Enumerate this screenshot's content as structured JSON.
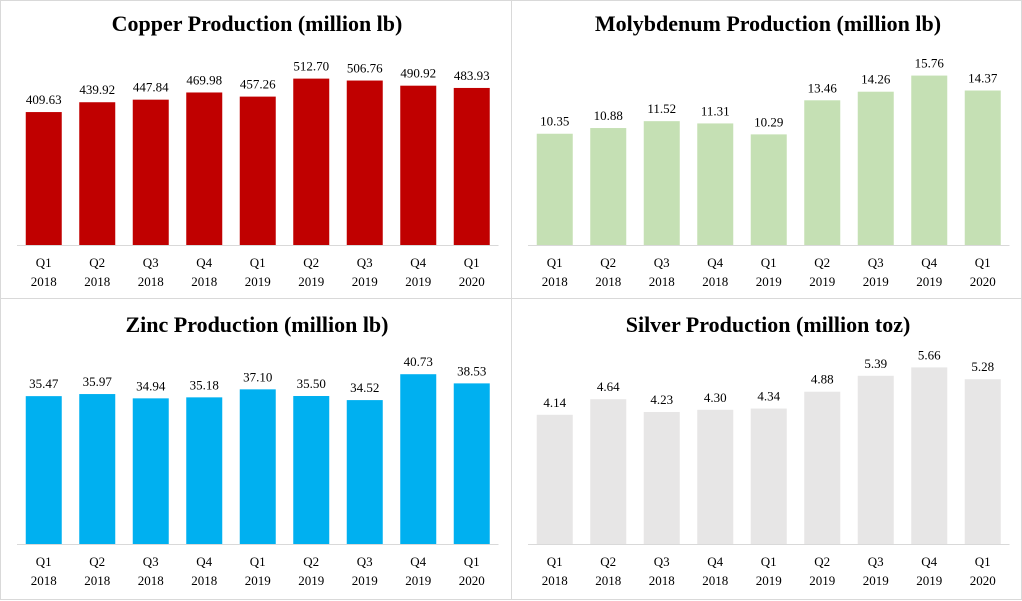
{
  "chart_data": [
    {
      "type": "bar",
      "title": "Copper Production (million lb)",
      "categories": [
        [
          "Q1",
          "2018"
        ],
        [
          "Q2",
          "2018"
        ],
        [
          "Q3",
          "2018"
        ],
        [
          "Q4",
          "2018"
        ],
        [
          "Q1",
          "2019"
        ],
        [
          "Q2",
          "2019"
        ],
        [
          "Q3",
          "2019"
        ],
        [
          "Q4",
          "2019"
        ],
        [
          "Q1",
          "2020"
        ]
      ],
      "values": [
        409.63,
        439.92,
        447.84,
        469.98,
        457.26,
        512.7,
        506.76,
        490.92,
        483.93
      ],
      "labels": [
        "409.63",
        "439.92",
        "447.84",
        "469.98",
        "457.26",
        "512.70",
        "506.76",
        "490.92",
        "483.93"
      ],
      "ylim": [
        0,
        530
      ],
      "color": "#c00000",
      "grid": false
    },
    {
      "type": "bar",
      "title": "Molybdenum Production (million lb)",
      "categories": [
        [
          "Q1",
          "2018"
        ],
        [
          "Q2",
          "2018"
        ],
        [
          "Q3",
          "2018"
        ],
        [
          "Q4",
          "2018"
        ],
        [
          "Q1",
          "2019"
        ],
        [
          "Q2",
          "2019"
        ],
        [
          "Q3",
          "2019"
        ],
        [
          "Q4",
          "2019"
        ],
        [
          "Q1",
          "2020"
        ]
      ],
      "values": [
        10.35,
        10.88,
        11.52,
        11.31,
        10.29,
        13.46,
        14.26,
        15.76,
        14.37
      ],
      "labels": [
        "10.35",
        "10.88",
        "11.52",
        "11.31",
        "10.29",
        "13.46",
        "14.26",
        "15.76",
        "14.37"
      ],
      "ylim": [
        0,
        16
      ],
      "color": "#c5e0b4",
      "grid": false
    },
    {
      "type": "bar",
      "title": "Zinc Production (million lb)",
      "categories": [
        [
          "Q1",
          "2018"
        ],
        [
          "Q2",
          "2018"
        ],
        [
          "Q3",
          "2018"
        ],
        [
          "Q4",
          "2018"
        ],
        [
          "Q1",
          "2019"
        ],
        [
          "Q2",
          "2019"
        ],
        [
          "Q3",
          "2019"
        ],
        [
          "Q4",
          "2019"
        ],
        [
          "Q1",
          "2020"
        ]
      ],
      "values": [
        35.47,
        35.97,
        34.94,
        35.18,
        37.1,
        35.5,
        34.52,
        40.73,
        38.53
      ],
      "labels": [
        "35.47",
        "35.97",
        "34.94",
        "35.18",
        "37.10",
        "35.50",
        "34.52",
        "40.73",
        "38.53"
      ],
      "ylim": [
        0,
        41.5
      ],
      "color": "#00b0f0",
      "grid": false
    },
    {
      "type": "bar",
      "title": "Silver Production (million toz)",
      "categories": [
        [
          "Q1",
          "2018"
        ],
        [
          "Q2",
          "2018"
        ],
        [
          "Q3",
          "2018"
        ],
        [
          "Q4",
          "2018"
        ],
        [
          "Q1",
          "2019"
        ],
        [
          "Q2",
          "2019"
        ],
        [
          "Q3",
          "2019"
        ],
        [
          "Q4",
          "2019"
        ],
        [
          "Q1",
          "2020"
        ]
      ],
      "values": [
        4.14,
        4.64,
        4.23,
        4.3,
        4.34,
        4.88,
        5.39,
        5.66,
        5.28
      ],
      "labels": [
        "4.14",
        "4.64",
        "4.23",
        "4.30",
        "4.34",
        "4.88",
        "5.39",
        "5.66",
        "5.28"
      ],
      "ylim": [
        0,
        5.8
      ],
      "color": "#e7e6e6",
      "grid": false
    }
  ]
}
